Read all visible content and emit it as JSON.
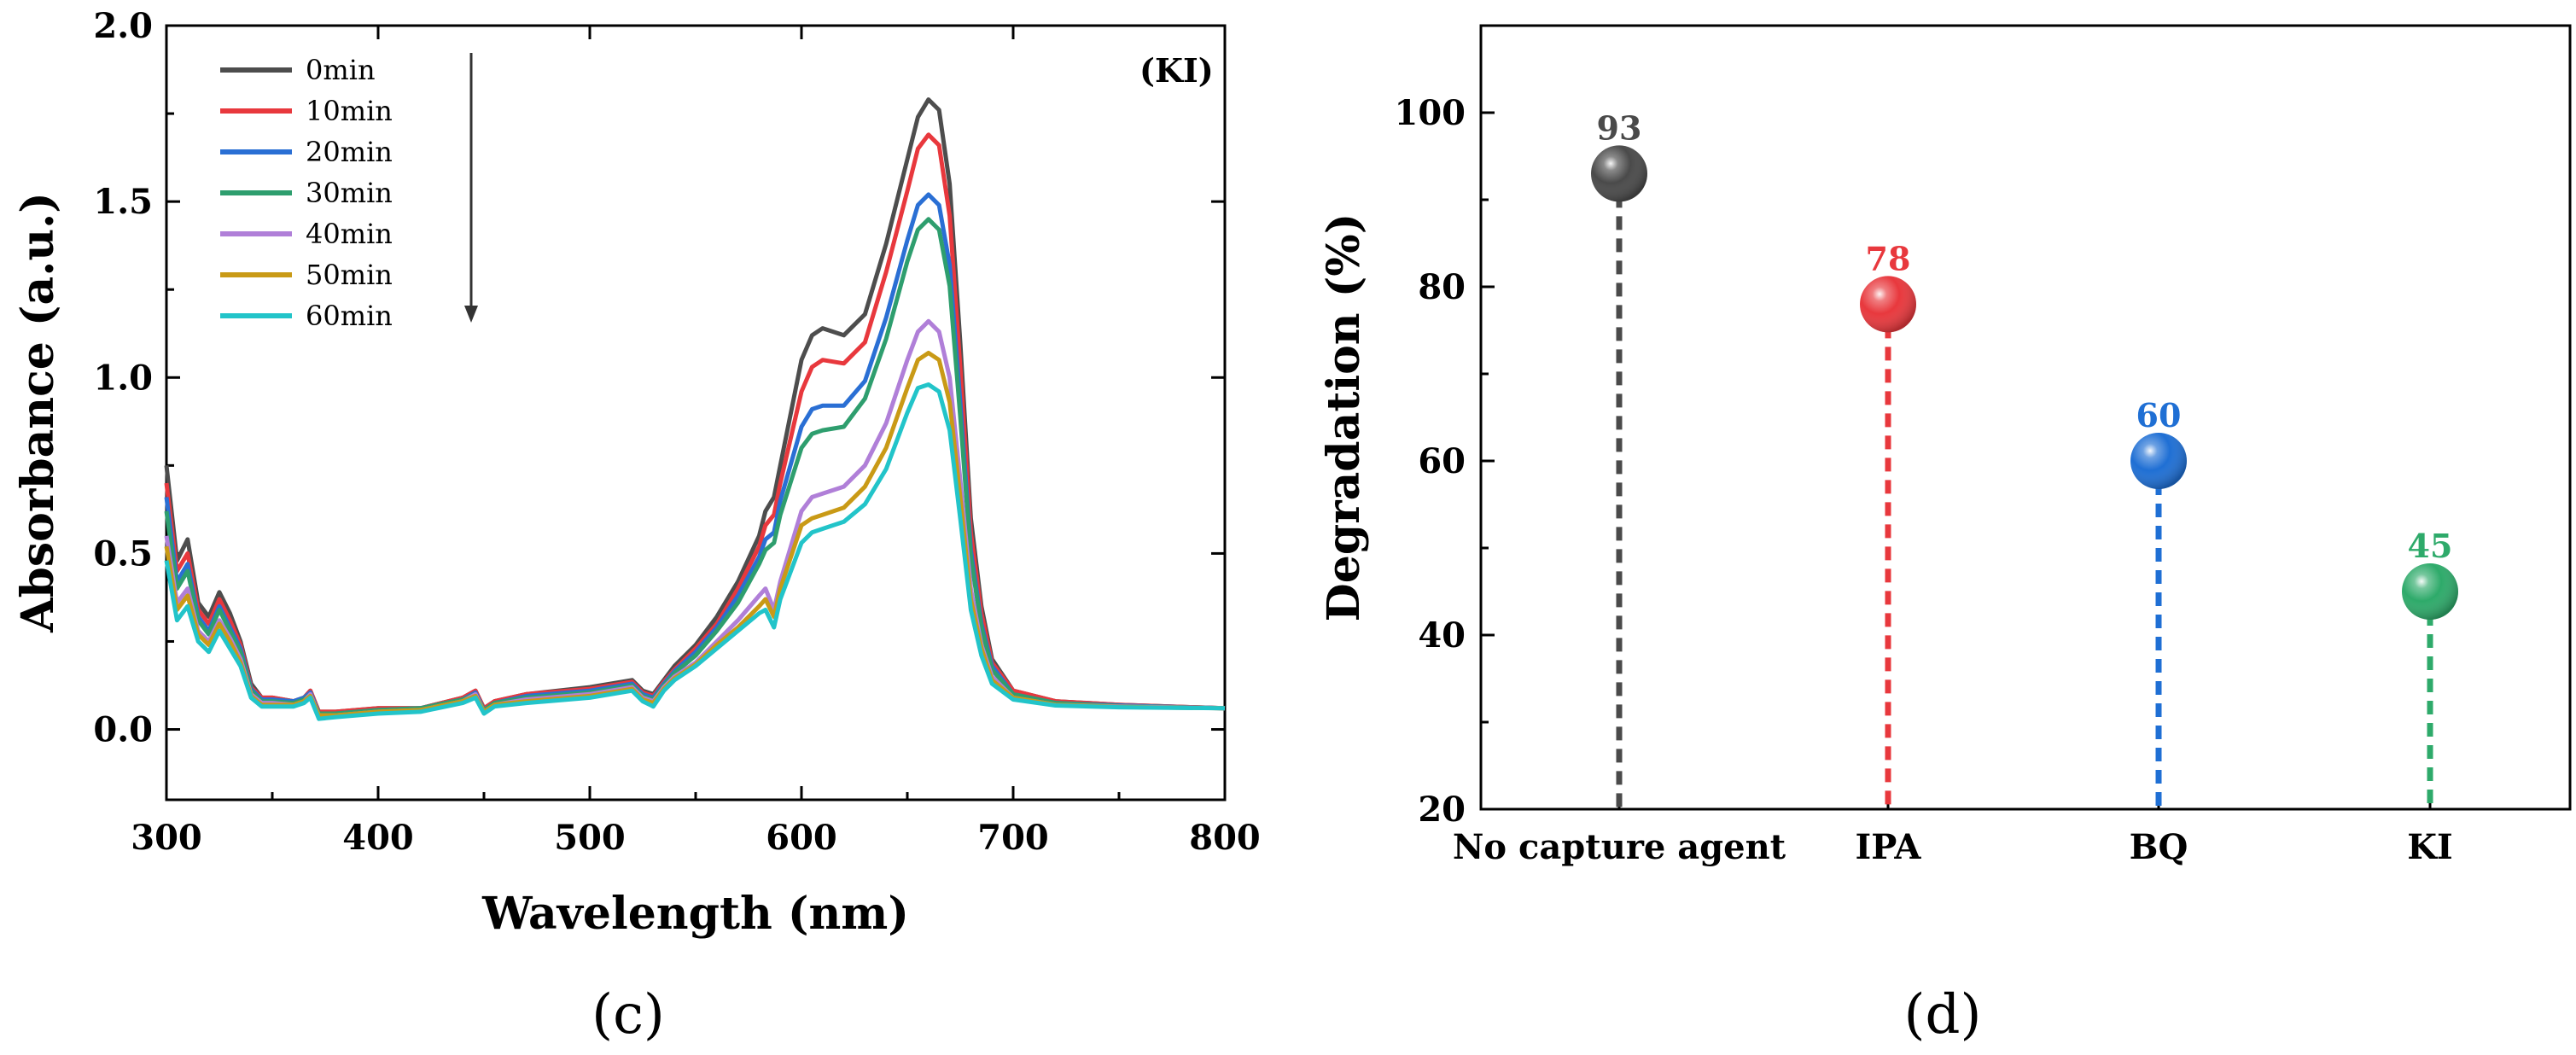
{
  "chart_data": [
    {
      "type": "line",
      "panel_label": "(c)",
      "annotation": "(KI)",
      "xlabel": "Wavelength (nm)",
      "ylabel": "Absorbance (a.u.)",
      "xlim": [
        300,
        800
      ],
      "ylim": [
        -0.2,
        2.0
      ],
      "xticks": [
        300,
        400,
        500,
        600,
        700,
        800
      ],
      "xtick_labels": [
        "300",
        "400",
        "500",
        "600",
        "700",
        "800"
      ],
      "yticks": [
        0.0,
        0.5,
        1.0,
        1.5,
        2.0
      ],
      "ytick_labels": [
        "0.0",
        "0.5",
        "1.0",
        "1.5",
        "2.0"
      ],
      "legend": "top-left",
      "grid": false,
      "x": [
        300,
        305,
        310,
        315,
        320,
        325,
        330,
        335,
        340,
        345,
        350,
        360,
        365,
        368,
        372,
        380,
        400,
        420,
        440,
        446,
        450,
        455,
        470,
        500,
        520,
        525,
        530,
        535,
        540,
        550,
        560,
        570,
        580,
        583,
        587,
        590,
        600,
        605,
        610,
        620,
        630,
        640,
        650,
        655,
        660,
        665,
        670,
        675,
        680,
        685,
        690,
        700,
        720,
        750,
        800
      ],
      "series": [
        {
          "name": "0min",
          "color": "#4d4d4d",
          "values": [
            0.75,
            0.48,
            0.54,
            0.36,
            0.32,
            0.39,
            0.33,
            0.25,
            0.13,
            0.09,
            0.09,
            0.08,
            0.09,
            0.11,
            0.05,
            0.05,
            0.06,
            0.06,
            0.09,
            0.11,
            0.06,
            0.08,
            0.1,
            0.12,
            0.14,
            0.11,
            0.1,
            0.14,
            0.18,
            0.24,
            0.32,
            0.42,
            0.55,
            0.62,
            0.66,
            0.75,
            1.05,
            1.12,
            1.14,
            1.12,
            1.18,
            1.38,
            1.62,
            1.74,
            1.79,
            1.76,
            1.55,
            1.1,
            0.6,
            0.35,
            0.2,
            0.11,
            0.08,
            0.07,
            0.06
          ]
        },
        {
          "name": "10min",
          "color": "#e8383d",
          "values": [
            0.7,
            0.45,
            0.5,
            0.34,
            0.3,
            0.37,
            0.31,
            0.24,
            0.12,
            0.09,
            0.09,
            0.08,
            0.09,
            0.11,
            0.05,
            0.05,
            0.06,
            0.06,
            0.09,
            0.11,
            0.06,
            0.08,
            0.1,
            0.115,
            0.135,
            0.105,
            0.095,
            0.135,
            0.17,
            0.23,
            0.3,
            0.4,
            0.52,
            0.58,
            0.61,
            0.7,
            0.96,
            1.03,
            1.05,
            1.04,
            1.1,
            1.3,
            1.53,
            1.65,
            1.69,
            1.66,
            1.46,
            1.03,
            0.56,
            0.33,
            0.19,
            0.11,
            0.08,
            0.07,
            0.06
          ]
        },
        {
          "name": "20min",
          "color": "#2a6fd4",
          "values": [
            0.66,
            0.42,
            0.47,
            0.32,
            0.28,
            0.35,
            0.29,
            0.23,
            0.115,
            0.085,
            0.085,
            0.08,
            0.09,
            0.105,
            0.045,
            0.045,
            0.055,
            0.06,
            0.085,
            0.105,
            0.055,
            0.075,
            0.095,
            0.11,
            0.13,
            0.1,
            0.09,
            0.13,
            0.165,
            0.22,
            0.29,
            0.38,
            0.49,
            0.54,
            0.56,
            0.65,
            0.86,
            0.91,
            0.92,
            0.92,
            0.99,
            1.17,
            1.39,
            1.49,
            1.52,
            1.49,
            1.32,
            0.93,
            0.51,
            0.3,
            0.18,
            0.1,
            0.075,
            0.068,
            0.06
          ]
        },
        {
          "name": "30min",
          "color": "#2e9e6e",
          "values": [
            0.62,
            0.4,
            0.45,
            0.31,
            0.27,
            0.34,
            0.28,
            0.22,
            0.11,
            0.08,
            0.08,
            0.075,
            0.085,
            0.1,
            0.045,
            0.045,
            0.055,
            0.06,
            0.085,
            0.1,
            0.055,
            0.075,
            0.09,
            0.105,
            0.125,
            0.095,
            0.085,
            0.125,
            0.16,
            0.21,
            0.28,
            0.36,
            0.47,
            0.51,
            0.53,
            0.61,
            0.8,
            0.84,
            0.85,
            0.86,
            0.94,
            1.11,
            1.33,
            1.42,
            1.45,
            1.42,
            1.26,
            0.89,
            0.49,
            0.29,
            0.17,
            0.1,
            0.075,
            0.066,
            0.06
          ]
        },
        {
          "name": "40min",
          "color": "#b07fd8",
          "values": [
            0.55,
            0.36,
            0.4,
            0.28,
            0.25,
            0.31,
            0.26,
            0.2,
            0.1,
            0.075,
            0.075,
            0.07,
            0.08,
            0.1,
            0.04,
            0.04,
            0.05,
            0.055,
            0.08,
            0.1,
            0.05,
            0.07,
            0.085,
            0.1,
            0.12,
            0.09,
            0.08,
            0.12,
            0.15,
            0.19,
            0.25,
            0.31,
            0.38,
            0.4,
            0.34,
            0.42,
            0.62,
            0.66,
            0.67,
            0.69,
            0.75,
            0.87,
            1.05,
            1.13,
            1.16,
            1.13,
            1.0,
            0.71,
            0.4,
            0.24,
            0.15,
            0.09,
            0.07,
            0.065,
            0.06
          ]
        },
        {
          "name": "50min",
          "color": "#c99a16",
          "values": [
            0.52,
            0.34,
            0.38,
            0.27,
            0.24,
            0.3,
            0.25,
            0.19,
            0.095,
            0.07,
            0.07,
            0.07,
            0.08,
            0.095,
            0.04,
            0.04,
            0.05,
            0.055,
            0.08,
            0.095,
            0.05,
            0.07,
            0.08,
            0.095,
            0.115,
            0.085,
            0.075,
            0.115,
            0.145,
            0.185,
            0.24,
            0.29,
            0.35,
            0.37,
            0.32,
            0.4,
            0.58,
            0.6,
            0.61,
            0.63,
            0.69,
            0.8,
            0.97,
            1.05,
            1.07,
            1.05,
            0.93,
            0.66,
            0.37,
            0.23,
            0.14,
            0.09,
            0.07,
            0.064,
            0.06
          ]
        },
        {
          "name": "60min",
          "color": "#22c4c9",
          "values": [
            0.48,
            0.31,
            0.35,
            0.25,
            0.22,
            0.28,
            0.23,
            0.18,
            0.09,
            0.065,
            0.065,
            0.065,
            0.075,
            0.09,
            0.03,
            0.035,
            0.045,
            0.05,
            0.075,
            0.09,
            0.045,
            0.065,
            0.075,
            0.09,
            0.11,
            0.08,
            0.065,
            0.11,
            0.14,
            0.18,
            0.23,
            0.28,
            0.33,
            0.34,
            0.29,
            0.37,
            0.53,
            0.56,
            0.57,
            0.59,
            0.64,
            0.74,
            0.9,
            0.97,
            0.98,
            0.96,
            0.85,
            0.6,
            0.34,
            0.21,
            0.13,
            0.085,
            0.068,
            0.063,
            0.06
          ]
        }
      ]
    },
    {
      "type": "scatter",
      "panel_label": "(d)",
      "ylabel": "Degradation (%)",
      "xlabel": "",
      "ylim": [
        20,
        110
      ],
      "yticks": [
        20,
        40,
        60,
        80,
        100
      ],
      "ytick_labels": [
        "20",
        "40",
        "60",
        "80",
        "100"
      ],
      "grid": false,
      "categories": [
        "No capture agent",
        "IPA",
        "BQ",
        "KI"
      ],
      "values": [
        93,
        78,
        60,
        45
      ],
      "value_labels": [
        "93",
        "78",
        "60",
        "45"
      ],
      "colors": [
        "#4a4a4a",
        "#e8383d",
        "#1f6fd4",
        "#2eaa6a"
      ]
    }
  ]
}
